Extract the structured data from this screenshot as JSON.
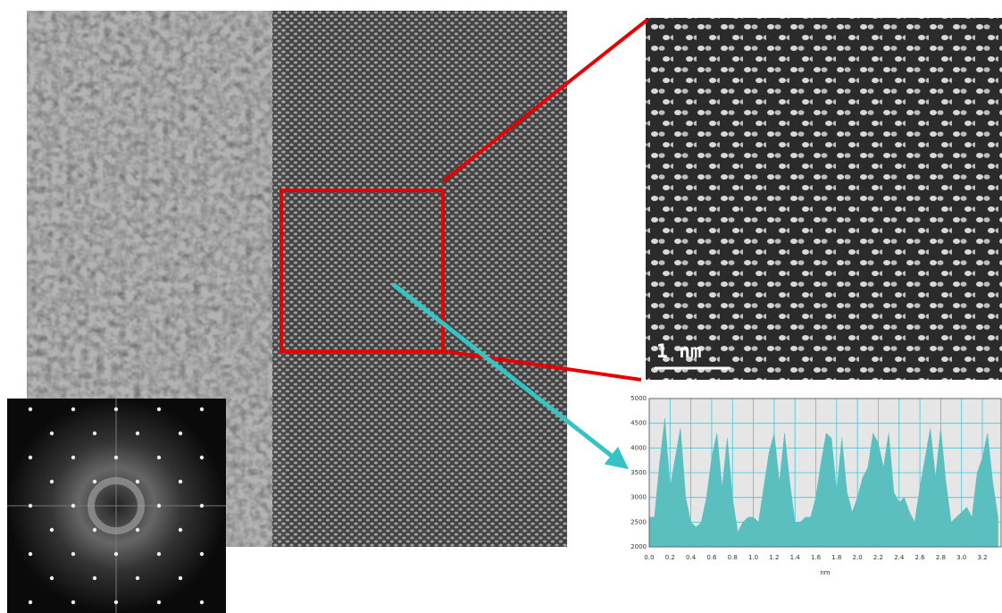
{
  "scale_bar_label": "1 nm",
  "chart_data": {
    "type": "area",
    "xlabel": "nm",
    "color": "#5bbfbf",
    "grid": true,
    "x": [
      0,
      0.05,
      0.1,
      0.15,
      0.2,
      0.25,
      0.3,
      0.35,
      0.4,
      0.45,
      0.5,
      0.55,
      0.6,
      0.65,
      0.7,
      0.75,
      0.8,
      0.85,
      0.9,
      0.95,
      1,
      1.05,
      1.1,
      1.15,
      1.2,
      1.25,
      1.3,
      1.35,
      1.4,
      1.45,
      1.5,
      1.55,
      1.6,
      1.65,
      1.7,
      1.75,
      1.8,
      1.85,
      1.9,
      1.95,
      2,
      2.05,
      2.1,
      2.15,
      2.2,
      2.25,
      2.3,
      2.35,
      2.4,
      2.45,
      2.5,
      2.55,
      2.6,
      2.65,
      2.7,
      2.75,
      2.8,
      2.85,
      2.9,
      2.95,
      3,
      3.05,
      3.1,
      3.15,
      3.2,
      3.25,
      3.3,
      3.35
    ],
    "values": [
      2600,
      2600,
      3700,
      4600,
      3200,
      3800,
      4400,
      3000,
      2500,
      2400,
      2500,
      3000,
      3800,
      4300,
      3200,
      4200,
      3000,
      2300,
      2500,
      2600,
      2600,
      2500,
      3200,
      3900,
      4300,
      3300,
      4300,
      3300,
      2500,
      2500,
      2600,
      2600,
      3000,
      3700,
      4300,
      4200,
      3100,
      4200,
      3100,
      2700,
      3000,
      3400,
      3600,
      4300,
      4100,
      3600,
      4300,
      3100,
      2900,
      3000,
      2700,
      2500,
      3200,
      3800,
      4400,
      3400,
      4400,
      3300,
      2500,
      2600,
      2700,
      2800,
      2600,
      3500,
      3800,
      4300,
      3300,
      2600
    ],
    "xlim": [
      0,
      3.38
    ],
    "ylim": [
      2000,
      5000
    ],
    "xticks": [
      {
        "value": 0,
        "label": "0.0"
      },
      0.2,
      0.4,
      0.6,
      0.8,
      {
        "value": 1,
        "label": "1.0"
      },
      1.2,
      1.4,
      1.6,
      1.8,
      {
        "value": 2,
        "label": "2.0"
      },
      2.2,
      2.4,
      2.6,
      2.8,
      {
        "value": 3,
        "label": "3.0"
      },
      3.2
    ],
    "yticks": [
      2000,
      2500,
      3000,
      3500,
      4000,
      4500,
      5000
    ]
  }
}
